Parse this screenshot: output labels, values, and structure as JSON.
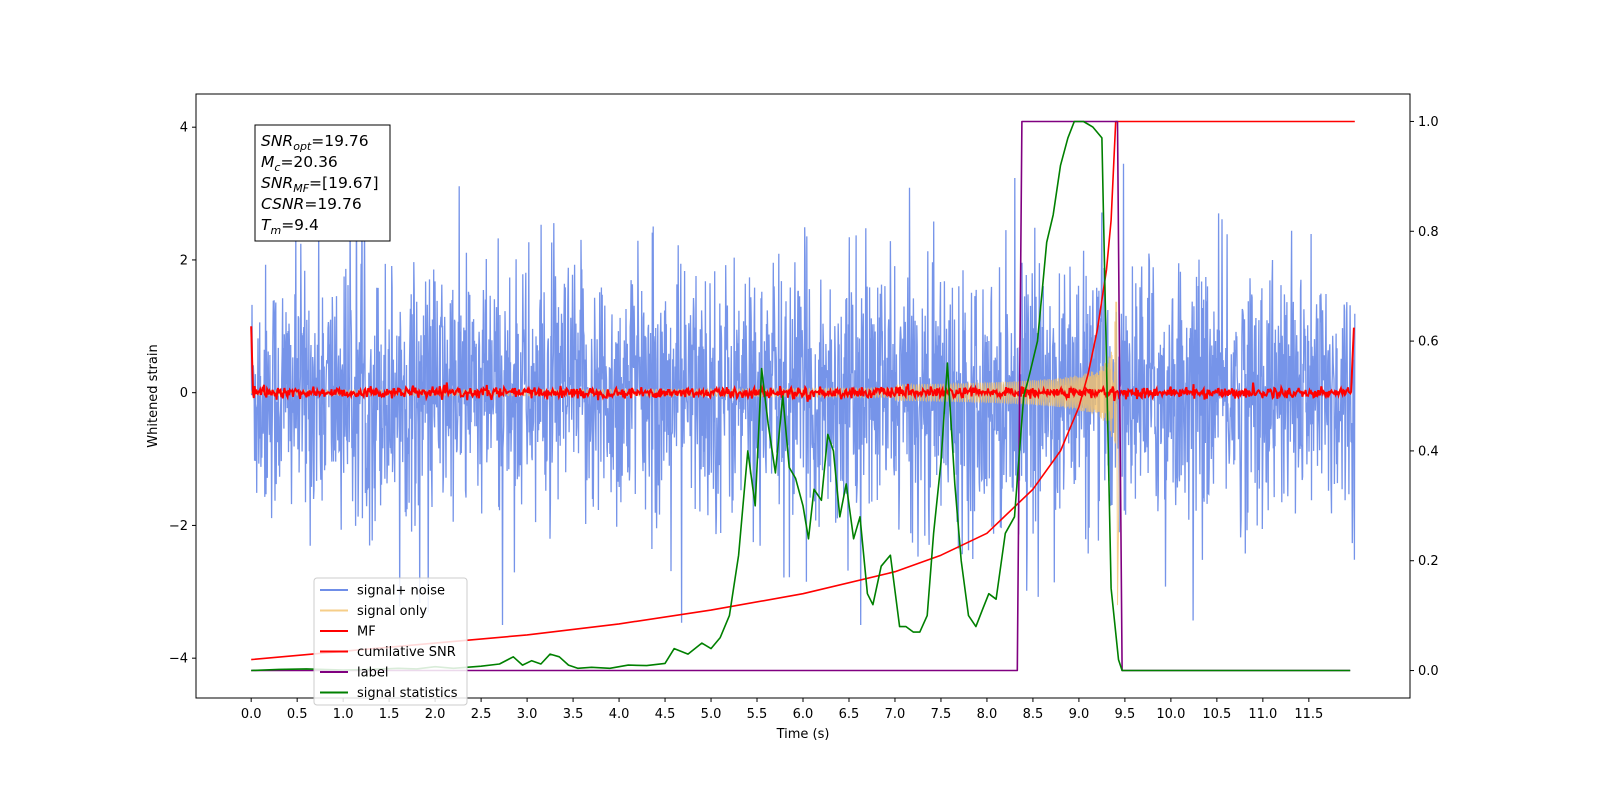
{
  "chart_data": {
    "type": "line",
    "title": "",
    "xlabel": "Time (s)",
    "ylabel": "Whitened strain",
    "xlim": [
      -0.6,
      12.6
    ],
    "ylim": [
      -4.6,
      4.5
    ],
    "y2lim": [
      -0.05,
      1.05
    ],
    "x_ticks": [
      "0.0",
      "0.5",
      "1.0",
      "1.5",
      "2.0",
      "2.5",
      "3.0",
      "3.5",
      "4.0",
      "4.5",
      "5.0",
      "5.5",
      "6.0",
      "6.5",
      "7.0",
      "7.5",
      "8.0",
      "8.5",
      "9.0",
      "9.5",
      "10.0",
      "10.5",
      "11.0",
      "11.5"
    ],
    "y_ticks": [
      "4",
      "2",
      "0",
      "−2",
      "−4"
    ],
    "y2_ticks": [
      "1.0",
      "0.8",
      "0.6",
      "0.4",
      "0.2",
      "0.0"
    ],
    "grid": false,
    "legend_position": "lower-left",
    "annotation": {
      "lines": [
        {
          "base": "SNR",
          "sub": "opt",
          "rest": "=19.76"
        },
        {
          "base": "M",
          "sub": "c",
          "rest": "=20.36"
        },
        {
          "base": "SNR",
          "sub": "MF",
          "rest": "=[19.67]"
        },
        {
          "base": "CSNR",
          "sub": "",
          "rest": "=19.76"
        },
        {
          "base": "T",
          "sub": "m",
          "rest": "=9.4"
        }
      ]
    },
    "series": [
      {
        "name": "signal+ noise",
        "axis": "left",
        "color": "#6f8ee8",
        "desc": "noisy whitened strain, amplitude about ±2 with spikes to ±3.4, t 0 to 12"
      },
      {
        "name": "signal only",
        "axis": "left",
        "color": "#f5c26b",
        "desc": "chirp growing in amplitude until merger at t≈9.4"
      },
      {
        "name": "MF",
        "axis": "left",
        "color": "#ff0000",
        "desc": "matched filter output near 0 with small fluctuations, 1.0 at t=0 and t=12"
      },
      {
        "name": "cumilative SNR",
        "axis": "right",
        "color": "#ff0000",
        "x": [
          0,
          1,
          2,
          3,
          4,
          5,
          6,
          7,
          7.5,
          8,
          8.5,
          8.8,
          9.0,
          9.1,
          9.2,
          9.3,
          9.35,
          9.4,
          12
        ],
        "y": [
          0.02,
          0.035,
          0.05,
          0.065,
          0.085,
          0.11,
          0.14,
          0.18,
          0.21,
          0.25,
          0.33,
          0.4,
          0.48,
          0.54,
          0.62,
          0.73,
          0.82,
          1.0,
          1.0
        ]
      },
      {
        "name": "label",
        "axis": "right",
        "color": "#800080",
        "x": [
          0,
          8.33,
          8.38,
          9.42,
          9.47,
          11.95
        ],
        "y": [
          0,
          0,
          1,
          1,
          0,
          0
        ]
      },
      {
        "name": "signal statistics",
        "axis": "right",
        "color": "#008000",
        "x": [
          0,
          0.3,
          0.6,
          1.0,
          1.3,
          1.6,
          1.8,
          2.0,
          2.2,
          2.5,
          2.7,
          2.85,
          2.95,
          3.05,
          3.15,
          3.25,
          3.35,
          3.45,
          3.55,
          3.7,
          3.9,
          4.1,
          4.3,
          4.5,
          4.6,
          4.75,
          4.9,
          5.0,
          5.1,
          5.2,
          5.3,
          5.4,
          5.48,
          5.55,
          5.62,
          5.7,
          5.78,
          5.85,
          5.92,
          6.0,
          6.06,
          6.12,
          6.2,
          6.27,
          6.33,
          6.4,
          6.47,
          6.55,
          6.62,
          6.7,
          6.76,
          6.85,
          6.95,
          7.05,
          7.12,
          7.2,
          7.27,
          7.35,
          7.42,
          7.5,
          7.57,
          7.65,
          7.72,
          7.8,
          7.88,
          7.95,
          8.02,
          8.1,
          8.2,
          8.3,
          8.4,
          8.45,
          8.55,
          8.65,
          8.72,
          8.8,
          8.88,
          8.95,
          9.05,
          9.15,
          9.25,
          9.35,
          9.43,
          9.47,
          11.95
        ],
        "y": [
          0.0,
          0.002,
          0.003,
          0.001,
          0.002,
          0.004,
          0.003,
          0.007,
          0.004,
          0.008,
          0.012,
          0.025,
          0.01,
          0.018,
          0.012,
          0.03,
          0.025,
          0.01,
          0.004,
          0.006,
          0.004,
          0.01,
          0.009,
          0.013,
          0.04,
          0.03,
          0.05,
          0.04,
          0.06,
          0.1,
          0.21,
          0.4,
          0.3,
          0.55,
          0.45,
          0.36,
          0.5,
          0.37,
          0.35,
          0.3,
          0.24,
          0.33,
          0.31,
          0.43,
          0.4,
          0.28,
          0.34,
          0.24,
          0.28,
          0.14,
          0.12,
          0.19,
          0.21,
          0.08,
          0.08,
          0.07,
          0.07,
          0.1,
          0.25,
          0.38,
          0.56,
          0.34,
          0.2,
          0.1,
          0.08,
          0.11,
          0.14,
          0.13,
          0.25,
          0.28,
          0.5,
          0.53,
          0.6,
          0.78,
          0.83,
          0.92,
          0.97,
          1.0,
          1.0,
          0.99,
          0.97,
          0.15,
          0.02,
          0.0,
          0.0
        ]
      }
    ]
  }
}
